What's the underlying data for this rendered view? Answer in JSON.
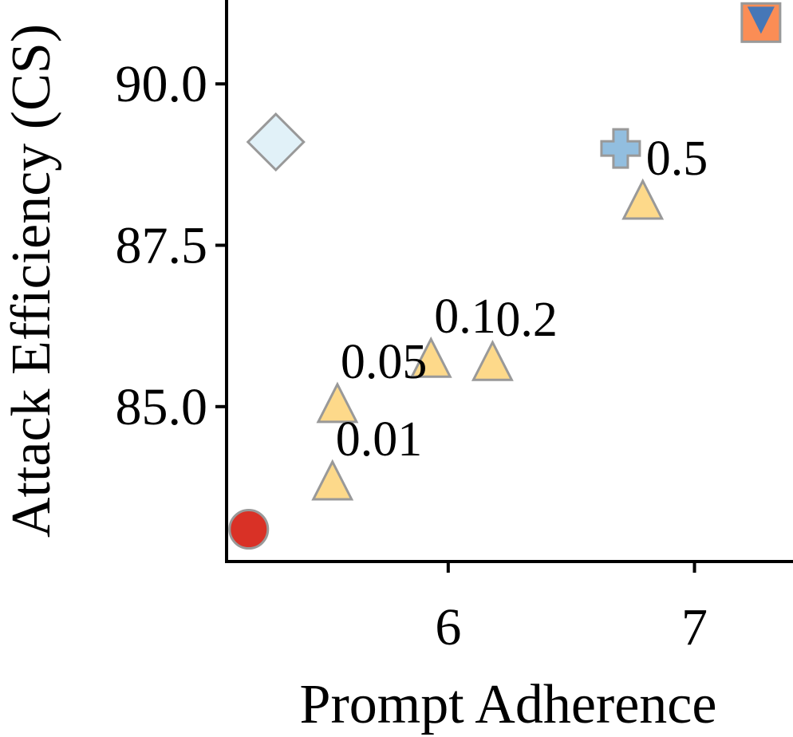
{
  "chart_data": {
    "type": "scatter",
    "title": "",
    "xlabel": "Prompt Adherence",
    "ylabel": "Attack Efficiency (CS)",
    "xlim": [
      5.1,
      7.4
    ],
    "ylim": [
      82.6,
      91.3
    ],
    "xticks": [
      {
        "value": 6,
        "label": "6"
      },
      {
        "value": 7,
        "label": "7"
      }
    ],
    "yticks": [
      {
        "value": 85.0,
        "label": "85.0"
      },
      {
        "value": 87.5,
        "label": "87.5"
      },
      {
        "value": 90.0,
        "label": "90.0"
      }
    ],
    "grid": false,
    "colors": {
      "circle": "#d93126",
      "diamond": "#e1f1f8",
      "plus": "#92bedf",
      "triangle": "#fdd98a",
      "square": "#fb8d55",
      "triangle_down": "#4677b7",
      "edge": "#999999"
    },
    "points": [
      {
        "marker": "circle",
        "x": 5.19,
        "y": 83.1
      },
      {
        "marker": "diamond",
        "x": 5.3,
        "y": 89.1
      },
      {
        "marker": "plus",
        "x": 6.7,
        "y": 89.0
      },
      {
        "marker": "triangle",
        "x": 5.53,
        "y": 83.75,
        "label": "0.01"
      },
      {
        "marker": "triangle",
        "x": 5.55,
        "y": 84.95,
        "label": "0.05"
      },
      {
        "marker": "triangle",
        "x": 5.93,
        "y": 85.65,
        "label": "0.1"
      },
      {
        "marker": "triangle",
        "x": 6.18,
        "y": 85.6,
        "label": "0.2"
      },
      {
        "marker": "triangle",
        "x": 6.79,
        "y": 88.1,
        "label": "0.5"
      },
      {
        "marker": "square",
        "x": 7.27,
        "y": 90.95
      },
      {
        "marker": "triangle_down",
        "x": 7.27,
        "y": 90.95
      }
    ]
  }
}
